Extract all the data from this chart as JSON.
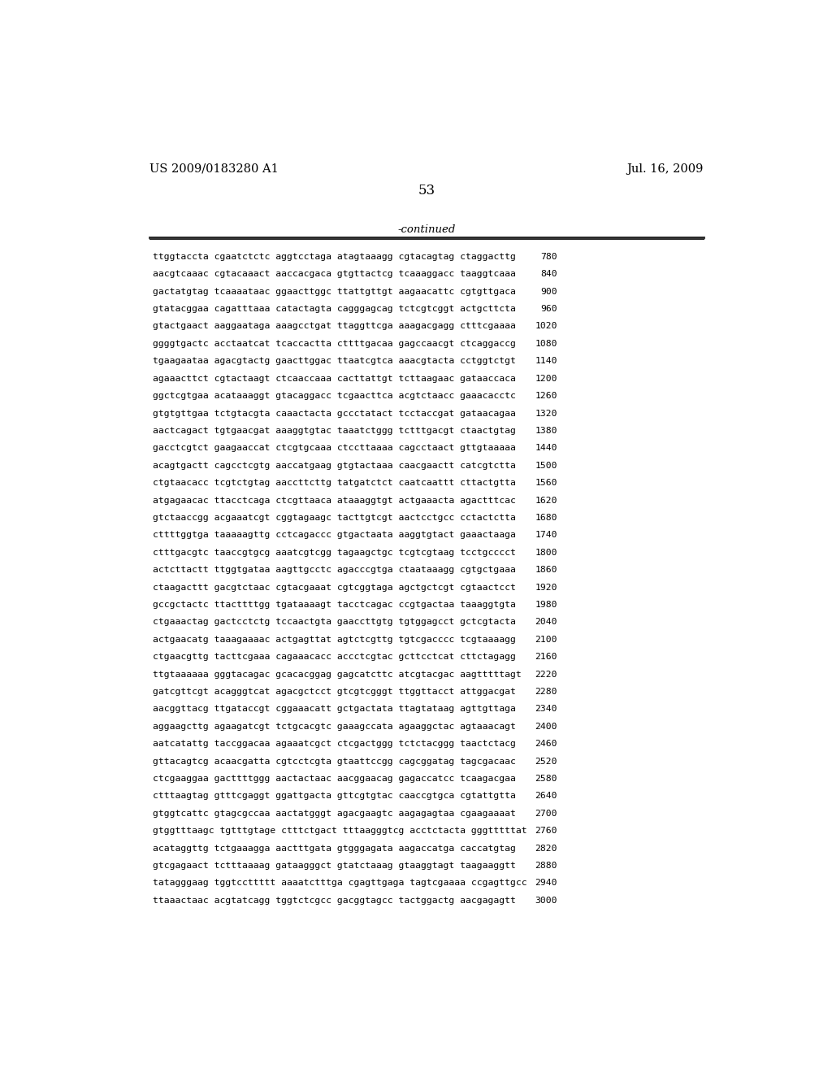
{
  "header_left": "US 2009/0183280 A1",
  "header_right": "Jul. 16, 2009",
  "page_number": "53",
  "continued_label": "-continued",
  "background_color": "#ffffff",
  "text_color": "#000000",
  "sequences": [
    {
      "seq": "ttggtaccta cgaatctctc aggtcctaga atagtaaagg cgtacagtag ctaggacttg",
      "num": "780"
    },
    {
      "seq": "aacgtcaaac cgtacaaact aaccacgaca gtgttactcg tcaaaggacc taaggtcaaa",
      "num": "840"
    },
    {
      "seq": "gactatgtag tcaaaataac ggaacttggc ttattgttgt aagaacattc cgtgttgaca",
      "num": "900"
    },
    {
      "seq": "gtatacggaa cagatttaaa catactagta cagggagcag tctcgtcggt actgcttcta",
      "num": "960"
    },
    {
      "seq": "gtactgaact aaggaataga aaagcctgat ttaggttcga aaagacgagg ctttcgaaaa",
      "num": "1020"
    },
    {
      "seq": "ggggtgactc acctaatcat tcaccactta cttttgacaa gagccaacgt ctcaggaccg",
      "num": "1080"
    },
    {
      "seq": "tgaagaataa agacgtactg gaacttggac ttaatcgtca aaacgtacta cctggtctgt",
      "num": "1140"
    },
    {
      "seq": "agaaacttct cgtactaagt ctcaaccaaa cacttattgt tcttaagaac gataaccaca",
      "num": "1200"
    },
    {
      "seq": "ggctcgtgaa acataaaggt gtacaggacc tcgaacttca acgtctaacc gaaacacctc",
      "num": "1260"
    },
    {
      "seq": "gtgtgttgaa tctgtacgta caaactacta gccctatact tcctaccgat gataacagaa",
      "num": "1320"
    },
    {
      "seq": "aactcagact tgtgaacgat aaaggtgtac taaatctggg tctttgacgt ctaactgtag",
      "num": "1380"
    },
    {
      "seq": "gacctcgtct gaagaaccat ctcgtgcaaa ctccttaaaa cagcctaact gttgtaaaaa",
      "num": "1440"
    },
    {
      "seq": "acagtgactt cagcctcgtg aaccatgaag gtgtactaaa caacgaactt catcgtctta",
      "num": "1500"
    },
    {
      "seq": "ctgtaacacc tcgtctgtag aaccttcttg tatgatctct caatcaattt cttactgtta",
      "num": "1560"
    },
    {
      "seq": "atgagaacac ttacctcaga ctcgttaaca ataaaggtgt actgaaacta agactttcac",
      "num": "1620"
    },
    {
      "seq": "gtctaaccgg acgaaatcgt cggtagaagc tacttgtcgt aactcctgcc cctactctta",
      "num": "1680"
    },
    {
      "seq": "cttttggtga taaaaagttg cctcagaccc gtgactaata aaggtgtact gaaactaaga",
      "num": "1740"
    },
    {
      "seq": "ctttgacgtc taaccgtgcg aaatcgtcgg tagaagctgc tcgtcgtaag tcctgcccct",
      "num": "1800"
    },
    {
      "seq": "actcttactt ttggtgataa aagttgcctc agacccgtga ctaataaagg cgtgctgaaa",
      "num": "1860"
    },
    {
      "seq": "ctaagacttt gacgtctaac cgtacgaaat cgtcggtaga agctgctcgt cgtaactcct",
      "num": "1920"
    },
    {
      "seq": "gccgctactc ttacttttgg tgataaaagt tacctcagac ccgtgactaa taaaggtgta",
      "num": "1980"
    },
    {
      "seq": "ctgaaactag gactcctctg tccaactgta gaaccttgtg tgtggagcct gctcgtacta",
      "num": "2040"
    },
    {
      "seq": "actgaacatg taaagaaaac actgagttat agtctcgttg tgtcgacccc tcgtaaaagg",
      "num": "2100"
    },
    {
      "seq": "ctgaacgttg tacttcgaaa cagaaacacc accctcgtac gcttcctcat cttctagagg",
      "num": "2160"
    },
    {
      "seq": "ttgtaaaaaa gggtacagac gcacacggag gagcatcttc atcgtacgac aagtttttagt",
      "num": "2220"
    },
    {
      "seq": "gatcgttcgt acagggtcat agacgctcct gtcgtcgggt ttggttacct attggacgat",
      "num": "2280"
    },
    {
      "seq": "aacggttacg ttgataccgt cggaaacatt gctgactata ttagtataag agttgttaga",
      "num": "2340"
    },
    {
      "seq": "aggaagcttg agaagatcgt tctgcacgtc gaaagccata agaaggctac agtaaacagt",
      "num": "2400"
    },
    {
      "seq": "aatcatattg taccggacaa agaaatcgct ctcgactggg tctctacggg taactctacg",
      "num": "2460"
    },
    {
      "seq": "gttacagtcg acaacgatta cgtcctcgta gtaattccgg cagcggatag tagcgacaac",
      "num": "2520"
    },
    {
      "seq": "ctcgaaggaa gacttttggg aactactaac aacggaacag gagaccatcc tcaagacgaa",
      "num": "2580"
    },
    {
      "seq": "ctttaagtag gtttcgaggt ggattgacta gttcgtgtac caaccgtgca cgtattgtta",
      "num": "2640"
    },
    {
      "seq": "gtggtcattc gtagcgccaa aactatgggt agacgaagtc aagagagtaa cgaagaaaat",
      "num": "2700"
    },
    {
      "seq": "gtggtttaagc tgtttgtage ctttctgact tttaagggtcg acctctacta gggtttttat",
      "num": "2760"
    },
    {
      "seq": "acataggttg tctgaaagga aactttgata gtgggagata aagaccatga caccatgtag",
      "num": "2820"
    },
    {
      "seq": "gtcgagaact tctttaaaag gataagggct gtatctaaag gtaaggtagt taagaaggtt",
      "num": "2880"
    },
    {
      "seq": "tatagggaag tggtccttttt aaaatctttga cgagttgaga tagtcgaaaa ccgagttgcc",
      "num": "2940"
    },
    {
      "seq": "ttaaactaac acgtatcagg tggtctcgcc gacggtagcc tactggactg aacgagagtt",
      "num": "3000"
    }
  ]
}
